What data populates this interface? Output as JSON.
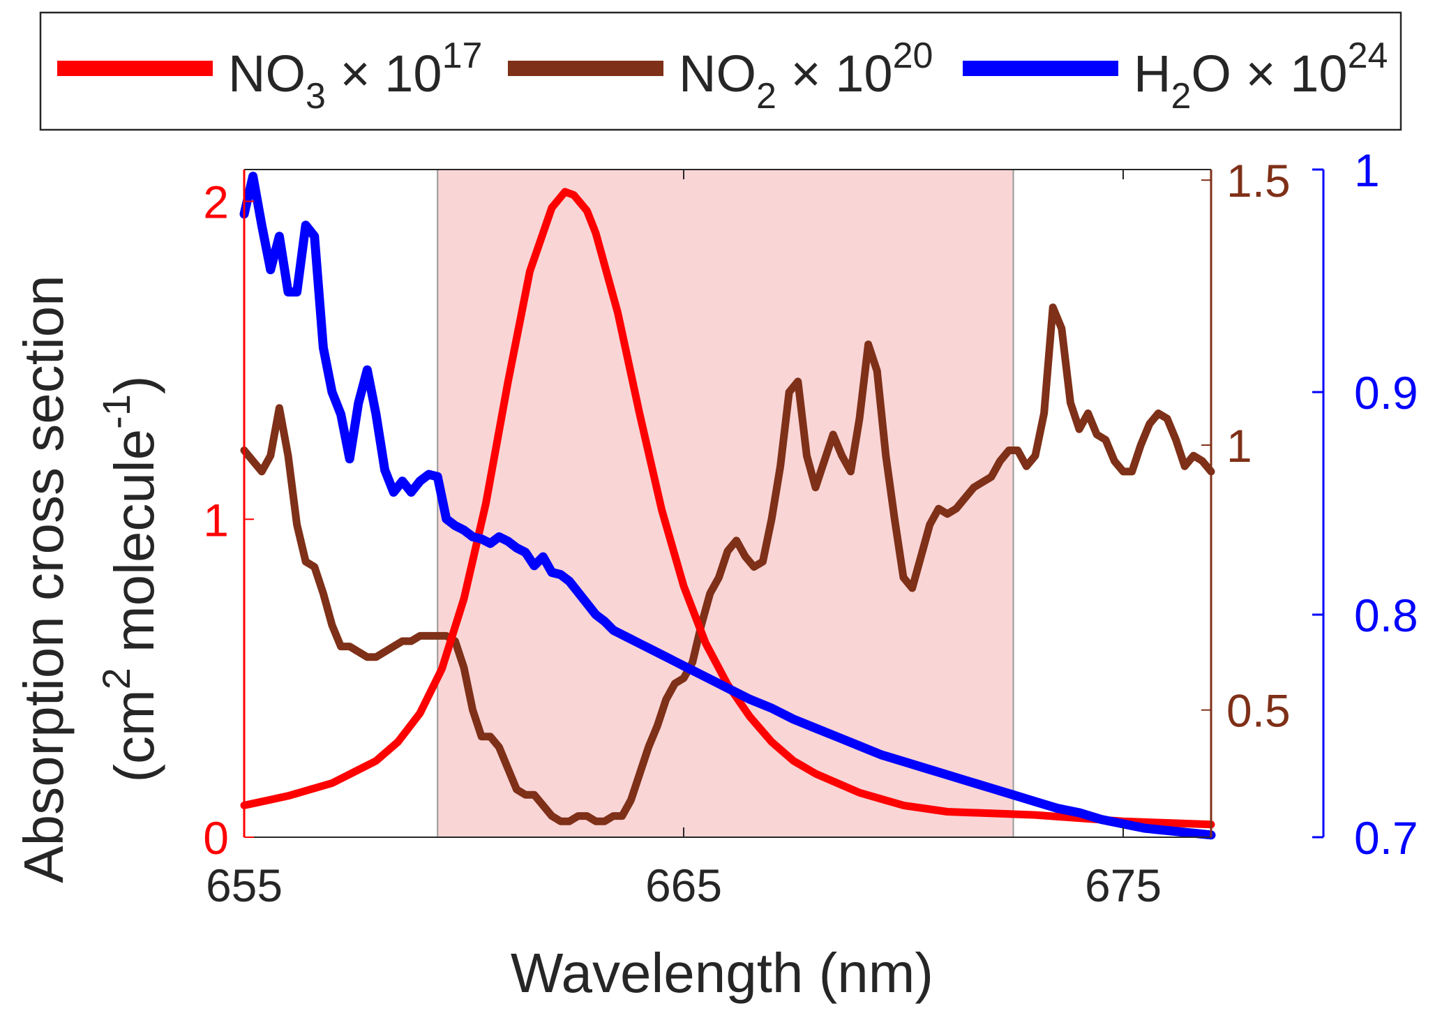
{
  "chart_data": {
    "type": "line",
    "xlabel": "Wavelength (nm)",
    "ylabel_line1": "Absorption cross section",
    "ylabel_line2": {
      "open": "(cm",
      "sup1": "2",
      "mid": " molecule",
      "sup2": "-1",
      "close": ")"
    },
    "xlim": [
      655,
      677
    ],
    "xticks": [
      655,
      665,
      675
    ],
    "highlight_region": [
      659.4,
      672.5
    ],
    "axes": {
      "left": {
        "color": "#ff0000",
        "ylim": [
          0,
          2.1
        ],
        "ticks": [
          0,
          1,
          2
        ]
      },
      "right_inner": {
        "color": "#7f3018",
        "ylim": [
          0.26,
          1.52
        ],
        "ticks": [
          0.5,
          1,
          1.5
        ],
        "tick_labels": [
          "0.5",
          "1",
          "1.5"
        ]
      },
      "right_outer": {
        "color": "#0000ff",
        "ylim": [
          0.7,
          1.0
        ],
        "ticks": [
          0.7,
          0.8,
          0.9,
          1.0
        ],
        "tick_labels": [
          "0.7",
          "0.8",
          "0.9",
          "1"
        ]
      }
    },
    "legend": {
      "position": "top",
      "entries": [
        {
          "base": "NO",
          "sub": "3",
          "mult": " × 10",
          "sup": "17",
          "color": "#ff0000"
        },
        {
          "base": "NO",
          "sub": "2",
          "mult": " × 10",
          "sup": "20",
          "color": "#7f3018"
        },
        {
          "base": "H",
          "sub": "2",
          "base2": "O",
          "mult": " × 10",
          "sup": "24",
          "color": "#0000ff"
        }
      ]
    },
    "series": [
      {
        "name": "NO3",
        "axis": "left",
        "color": "#ff0000",
        "x": [
          655,
          656,
          657,
          658,
          658.5,
          659,
          659.5,
          660,
          660.5,
          661,
          661.5,
          662,
          662.3,
          662.5,
          662.8,
          663,
          663.5,
          664,
          664.5,
          665,
          665.5,
          666,
          666.5,
          667,
          667.5,
          668,
          669,
          670,
          671,
          672,
          673,
          674,
          675,
          676,
          677
        ],
        "y": [
          0.1,
          0.13,
          0.17,
          0.24,
          0.3,
          0.39,
          0.53,
          0.75,
          1.05,
          1.43,
          1.78,
          1.98,
          2.03,
          2.02,
          1.97,
          1.9,
          1.65,
          1.33,
          1.03,
          0.79,
          0.61,
          0.48,
          0.38,
          0.3,
          0.24,
          0.2,
          0.14,
          0.1,
          0.08,
          0.075,
          0.07,
          0.06,
          0.05,
          0.045,
          0.04
        ]
      },
      {
        "name": "NO2",
        "axis": "right_inner",
        "color": "#7f3018",
        "x": [
          655,
          655.2,
          655.4,
          655.6,
          655.8,
          656,
          656.2,
          656.4,
          656.6,
          656.8,
          657,
          657.2,
          657.4,
          657.6,
          657.8,
          658,
          658.2,
          658.4,
          658.6,
          658.8,
          659,
          659.2,
          659.4,
          659.6,
          659.8,
          660,
          660.2,
          660.4,
          660.6,
          660.8,
          661,
          661.2,
          661.4,
          661.6,
          661.8,
          662,
          662.2,
          662.4,
          662.6,
          662.8,
          663,
          663.2,
          663.4,
          663.6,
          663.8,
          664,
          664.2,
          664.4,
          664.6,
          664.8,
          665,
          665.2,
          665.4,
          665.6,
          665.8,
          666,
          666.2,
          666.4,
          666.6,
          666.8,
          667,
          667.2,
          667.4,
          667.6,
          667.8,
          668,
          668.2,
          668.4,
          668.6,
          668.8,
          669,
          669.2,
          669.4,
          669.6,
          669.8,
          670,
          670.2,
          670.4,
          670.6,
          670.8,
          671,
          671.2,
          671.4,
          671.6,
          671.8,
          672,
          672.2,
          672.4,
          672.6,
          672.8,
          673,
          673.2,
          673.4,
          673.6,
          673.8,
          674,
          674.2,
          674.4,
          674.6,
          674.8,
          675,
          675.2,
          675.4,
          675.6,
          675.8,
          676,
          676.2,
          676.4,
          676.6,
          676.8,
          677
        ],
        "y": [
          0.99,
          0.97,
          0.95,
          0.98,
          1.07,
          0.98,
          0.85,
          0.78,
          0.77,
          0.72,
          0.66,
          0.62,
          0.62,
          0.61,
          0.6,
          0.6,
          0.61,
          0.62,
          0.63,
          0.63,
          0.64,
          0.64,
          0.64,
          0.64,
          0.63,
          0.58,
          0.5,
          0.45,
          0.45,
          0.43,
          0.39,
          0.35,
          0.34,
          0.34,
          0.32,
          0.3,
          0.29,
          0.29,
          0.3,
          0.3,
          0.29,
          0.29,
          0.3,
          0.3,
          0.33,
          0.38,
          0.43,
          0.47,
          0.52,
          0.55,
          0.56,
          0.59,
          0.66,
          0.72,
          0.75,
          0.8,
          0.82,
          0.79,
          0.77,
          0.78,
          0.86,
          0.96,
          1.1,
          1.12,
          0.98,
          0.92,
          0.97,
          1.02,
          0.98,
          0.95,
          1.05,
          1.19,
          1.14,
          0.98,
          0.86,
          0.75,
          0.73,
          0.79,
          0.85,
          0.88,
          0.87,
          0.88,
          0.9,
          0.92,
          0.93,
          0.94,
          0.97,
          0.99,
          0.99,
          0.96,
          0.98,
          1.06,
          1.26,
          1.22,
          1.08,
          1.03,
          1.06,
          1.02,
          1.01,
          0.97,
          0.95,
          0.95,
          1.0,
          1.04,
          1.06,
          1.05,
          1.01,
          0.96,
          0.98,
          0.97,
          0.95
        ]
      },
      {
        "name": "H2O",
        "axis": "right_outer",
        "color": "#0000ff",
        "x": [
          655,
          655.2,
          655.4,
          655.6,
          655.8,
          656,
          656.2,
          656.4,
          656.6,
          656.8,
          657,
          657.2,
          657.4,
          657.6,
          657.8,
          658,
          658.2,
          658.4,
          658.6,
          658.8,
          659,
          659.2,
          659.4,
          659.6,
          659.8,
          660,
          660.2,
          660.4,
          660.6,
          660.8,
          661,
          661.2,
          661.4,
          661.6,
          661.8,
          662,
          662.2,
          662.4,
          662.6,
          662.8,
          663,
          663.2,
          663.4,
          663.6,
          663.8,
          664,
          664.2,
          664.4,
          664.6,
          664.8,
          665,
          665.5,
          666,
          666.5,
          667,
          667.5,
          668,
          668.5,
          669,
          669.5,
          670,
          670.5,
          671,
          671.5,
          672,
          672.5,
          673,
          673.5,
          674,
          674.5,
          675,
          675.5,
          676,
          676.5,
          677
        ],
        "y": [
          0.98,
          0.997,
          0.975,
          0.955,
          0.97,
          0.945,
          0.945,
          0.975,
          0.97,
          0.92,
          0.9,
          0.89,
          0.87,
          0.895,
          0.91,
          0.89,
          0.865,
          0.855,
          0.86,
          0.855,
          0.86,
          0.863,
          0.862,
          0.843,
          0.84,
          0.838,
          0.835,
          0.834,
          0.832,
          0.835,
          0.833,
          0.83,
          0.828,
          0.822,
          0.826,
          0.819,
          0.818,
          0.815,
          0.81,
          0.805,
          0.8,
          0.797,
          0.793,
          0.791,
          0.789,
          0.787,
          0.785,
          0.783,
          0.781,
          0.779,
          0.777,
          0.772,
          0.767,
          0.762,
          0.758,
          0.753,
          0.749,
          0.745,
          0.741,
          0.737,
          0.734,
          0.731,
          0.728,
          0.725,
          0.722,
          0.719,
          0.716,
          0.713,
          0.711,
          0.708,
          0.706,
          0.704,
          0.703,
          0.702,
          0.701
        ]
      }
    ]
  }
}
